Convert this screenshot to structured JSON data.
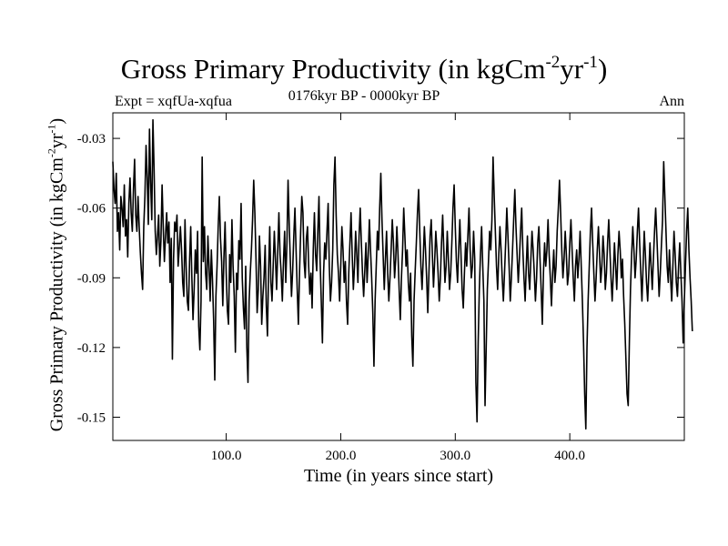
{
  "chart_data": {
    "type": "line",
    "title_main": "Gross Primary Productivity (in kgCm",
    "title_sup1": "-2",
    "title_mid": "yr",
    "title_sup2": "-1",
    "title_end": ")",
    "subtitle": "0176kyr BP - 0000kyr BP",
    "experiment": "Expt = xqfUa-xqfua",
    "season": "Ann",
    "xlabel": "Time (in years since start)",
    "ylabel_main": "Gross Primary Productivity (in kgCm",
    "ylabel_sup1": "-2",
    "ylabel_mid": "yr",
    "ylabel_sup2": "-1",
    "ylabel_end": ")",
    "xlim": [
      1,
      500
    ],
    "ylim": [
      -0.16,
      -0.019
    ],
    "x_ticks": [
      100,
      200,
      300,
      400
    ],
    "x_tick_labels": [
      "100.0",
      "200.0",
      "300.0",
      "400.0"
    ],
    "y_ticks": [
      -0.15,
      -0.12,
      -0.09,
      -0.06,
      -0.03
    ],
    "y_tick_labels": [
      "-0.15",
      "-0.12",
      "-0.09",
      "-0.06",
      "-0.03"
    ],
    "series": [
      {
        "name": "xqfUa-xqfua",
        "color": "#000000",
        "x_start": 1,
        "x_step": 1,
        "values": [
          -0.04,
          -0.052,
          -0.058,
          -0.045,
          -0.07,
          -0.062,
          -0.078,
          -0.055,
          -0.06,
          -0.068,
          -0.05,
          -0.072,
          -0.065,
          -0.081,
          -0.058,
          -0.047,
          -0.062,
          -0.07,
          -0.052,
          -0.039,
          -0.063,
          -0.07,
          -0.055,
          -0.068,
          -0.079,
          -0.088,
          -0.095,
          -0.068,
          -0.055,
          -0.033,
          -0.047,
          -0.067,
          -0.026,
          -0.049,
          -0.065,
          -0.022,
          -0.043,
          -0.07,
          -0.08,
          -0.072,
          -0.063,
          -0.085,
          -0.074,
          -0.05,
          -0.068,
          -0.083,
          -0.072,
          -0.062,
          -0.075,
          -0.066,
          -0.092,
          -0.073,
          -0.125,
          -0.082,
          -0.066,
          -0.07,
          -0.063,
          -0.085,
          -0.077,
          -0.068,
          -0.078,
          -0.092,
          -0.098,
          -0.065,
          -0.085,
          -0.1,
          -0.104,
          -0.083,
          -0.068,
          -0.09,
          -0.108,
          -0.095,
          -0.078,
          -0.088,
          -0.07,
          -0.111,
          -0.121,
          -0.1,
          -0.038,
          -0.083,
          -0.068,
          -0.088,
          -0.095,
          -0.072,
          -0.085,
          -0.1,
          -0.078,
          -0.091,
          -0.108,
          -0.134,
          -0.098,
          -0.085,
          -0.068,
          -0.055,
          -0.073,
          -0.083,
          -0.102,
          -0.081,
          -0.066,
          -0.088,
          -0.104,
          -0.11,
          -0.08,
          -0.092,
          -0.065,
          -0.085,
          -0.098,
          -0.122,
          -0.088,
          -0.095,
          -0.074,
          -0.082,
          -0.058,
          -0.09,
          -0.103,
          -0.112,
          -0.085,
          -0.12,
          -0.135,
          -0.1,
          -0.088,
          -0.078,
          -0.065,
          -0.048,
          -0.062,
          -0.082,
          -0.105,
          -0.095,
          -0.072,
          -0.085,
          -0.11,
          -0.098,
          -0.09,
          -0.076,
          -0.102,
          -0.115,
          -0.087,
          -0.068,
          -0.092,
          -0.1,
          -0.085,
          -0.07,
          -0.082,
          -0.095,
          -0.078,
          -0.062,
          -0.08,
          -0.088,
          -0.1,
          -0.083,
          -0.07,
          -0.092,
          -0.075,
          -0.048,
          -0.067,
          -0.083,
          -0.098,
          -0.087,
          -0.072,
          -0.06,
          -0.078,
          -0.095,
          -0.11,
          -0.088,
          -0.07,
          -0.055,
          -0.062,
          -0.083,
          -0.09,
          -0.073,
          -0.068,
          -0.085,
          -0.097,
          -0.088,
          -0.103,
          -0.078,
          -0.062,
          -0.08,
          -0.087,
          -0.07,
          -0.055,
          -0.083,
          -0.1,
          -0.118,
          -0.088,
          -0.075,
          -0.082,
          -0.07,
          -0.058,
          -0.085,
          -0.1,
          -0.092,
          -0.078,
          -0.05,
          -0.038,
          -0.063,
          -0.08,
          -0.088,
          -0.1,
          -0.085,
          -0.068,
          -0.078,
          -0.092,
          -0.083,
          -0.1,
          -0.11,
          -0.088,
          -0.075,
          -0.062,
          -0.08,
          -0.095,
          -0.085,
          -0.07,
          -0.08,
          -0.092,
          -0.072,
          -0.06,
          -0.075,
          -0.088,
          -0.098,
          -0.087,
          -0.075,
          -0.092,
          -0.08,
          -0.065,
          -0.078,
          -0.09,
          -0.105,
          -0.128,
          -0.1,
          -0.085,
          -0.07,
          -0.078,
          -0.06,
          -0.045,
          -0.065,
          -0.08,
          -0.095,
          -0.082,
          -0.07,
          -0.088,
          -0.1,
          -0.09,
          -0.078,
          -0.065,
          -0.075,
          -0.09,
          -0.082,
          -0.068,
          -0.08,
          -0.095,
          -0.108,
          -0.09,
          -0.078,
          -0.06,
          -0.072,
          -0.085,
          -0.078,
          -0.092,
          -0.1,
          -0.088,
          -0.115,
          -0.128,
          -0.1,
          -0.087,
          -0.075,
          -0.062,
          -0.052,
          -0.07,
          -0.085,
          -0.095,
          -0.082,
          -0.068,
          -0.078,
          -0.09,
          -0.105,
          -0.088,
          -0.072,
          -0.065,
          -0.08,
          -0.094,
          -0.083,
          -0.07,
          -0.078,
          -0.088,
          -0.1,
          -0.09,
          -0.075,
          -0.063,
          -0.078,
          -0.092,
          -0.085,
          -0.07,
          -0.082,
          -0.095,
          -0.088,
          -0.075,
          -0.06,
          -0.05,
          -0.068,
          -0.083,
          -0.092,
          -0.078,
          -0.065,
          -0.08,
          -0.095,
          -0.103,
          -0.088,
          -0.075,
          -0.085,
          -0.072,
          -0.06,
          -0.078,
          -0.09,
          -0.085,
          -0.07,
          -0.082,
          -0.135,
          -0.152,
          -0.118,
          -0.095,
          -0.08,
          -0.068,
          -0.085,
          -0.1,
          -0.145,
          -0.12,
          -0.095,
          -0.083,
          -0.07,
          -0.078,
          -0.065,
          -0.038,
          -0.055,
          -0.07,
          -0.085,
          -0.095,
          -0.08,
          -0.068,
          -0.078,
          -0.09,
          -0.1,
          -0.088,
          -0.075,
          -0.06,
          -0.072,
          -0.085,
          -0.1,
          -0.09,
          -0.078,
          -0.065,
          -0.052,
          -0.068,
          -0.08,
          -0.092,
          -0.082,
          -0.07,
          -0.06,
          -0.078,
          -0.09,
          -0.1,
          -0.085,
          -0.072,
          -0.088,
          -0.095,
          -0.082,
          -0.07,
          -0.078,
          -0.088,
          -0.1,
          -0.09,
          -0.075,
          -0.068,
          -0.082,
          -0.095,
          -0.11,
          -0.088,
          -0.075,
          -0.085,
          -0.078,
          -0.065,
          -0.08,
          -0.09,
          -0.102,
          -0.088,
          -0.078,
          -0.092,
          -0.085,
          -0.07,
          -0.06,
          -0.048,
          -0.062,
          -0.078,
          -0.09,
          -0.082,
          -0.07,
          -0.08,
          -0.093,
          -0.088,
          -0.075,
          -0.065,
          -0.078,
          -0.09,
          -0.1,
          -0.085,
          -0.078,
          -0.09,
          -0.082,
          -0.07,
          -0.085,
          -0.1,
          -0.118,
          -0.14,
          -0.155,
          -0.12,
          -0.1,
          -0.085,
          -0.07,
          -0.06,
          -0.075,
          -0.088,
          -0.1,
          -0.09,
          -0.078,
          -0.068,
          -0.08,
          -0.092,
          -0.085,
          -0.072,
          -0.08,
          -0.095,
          -0.088,
          -0.075,
          -0.065,
          -0.078,
          -0.09,
          -0.1,
          -0.088,
          -0.075,
          -0.085,
          -0.095,
          -0.08,
          -0.07,
          -0.078,
          -0.09,
          -0.082,
          -0.098,
          -0.11,
          -0.125,
          -0.14,
          -0.145,
          -0.118,
          -0.095,
          -0.08,
          -0.068,
          -0.078,
          -0.09,
          -0.082,
          -0.07,
          -0.06,
          -0.075,
          -0.088,
          -0.1,
          -0.085,
          -0.07,
          -0.08,
          -0.092,
          -0.1,
          -0.088,
          -0.075,
          -0.085,
          -0.095,
          -0.082,
          -0.07,
          -0.06,
          -0.072,
          -0.085,
          -0.098,
          -0.088,
          -0.076,
          -0.065,
          -0.04,
          -0.055,
          -0.07,
          -0.085,
          -0.092,
          -0.078,
          -0.09,
          -0.1,
          -0.085,
          -0.07,
          -0.08,
          -0.092,
          -0.098,
          -0.085,
          -0.075,
          -0.088,
          -0.1,
          -0.118,
          -0.1,
          -0.085,
          -0.07,
          -0.06,
          -0.078,
          -0.09,
          -0.1,
          -0.113
        ]
      }
    ]
  }
}
